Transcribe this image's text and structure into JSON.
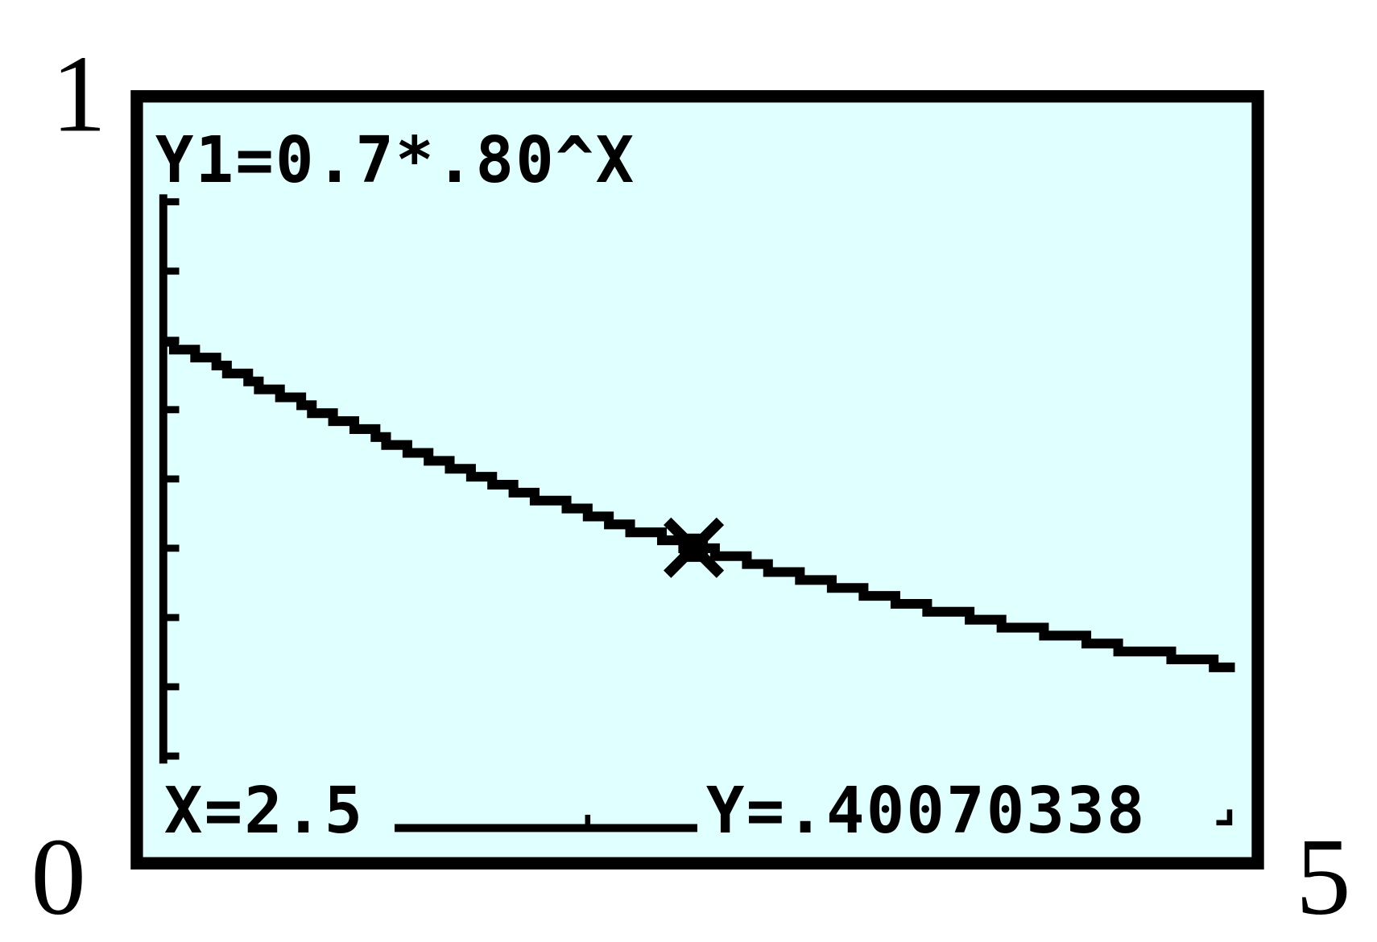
{
  "chart_data": {
    "type": "line",
    "title": "",
    "equation_label": "Y1=0.7*.80^X",
    "function": {
      "a": 0.7,
      "b": 0.8
    },
    "xlim": [
      0,
      5
    ],
    "ylim": [
      0,
      1
    ],
    "yscl": 0.1,
    "corner_labels": {
      "ymax": "1",
      "origin": "0",
      "xmax": "5"
    },
    "trace": {
      "x": 2.5,
      "y": 0.40070338,
      "x_label": "X=2.5",
      "y_label": "Y=.40070338"
    },
    "grid": false,
    "colors": {
      "screen": "#E0FFFF",
      "ink": "#000000",
      "page": "#FFFFFF"
    }
  }
}
